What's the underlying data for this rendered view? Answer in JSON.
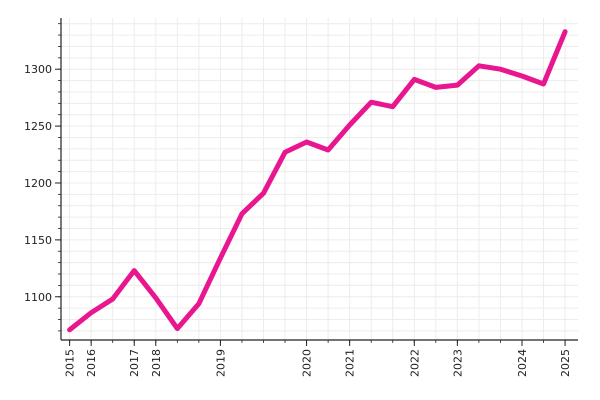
{
  "chart_data": {
    "type": "line",
    "title": "",
    "xlabel": "",
    "ylabel": "",
    "grid": true,
    "color": "#e8168f",
    "x_ticks": [
      {
        "label": "2015",
        "value": 2015.0
      },
      {
        "label": "2016",
        "value": 2015.5
      },
      {
        "label": "2017",
        "value": 2016.5
      },
      {
        "label": "2018",
        "value": 2017.0
      },
      {
        "label": "2019",
        "value": 2018.5
      },
      {
        "label": "2020",
        "value": 2020.5
      },
      {
        "label": "2021",
        "value": 2021.5
      },
      {
        "label": "2022",
        "value": 2023.0
      },
      {
        "label": "2023",
        "value": 2024.0
      },
      {
        "label": "2024",
        "value": 2025.5
      },
      {
        "label": "2025",
        "value": 2026.5
      }
    ],
    "y_ticks": [
      1100,
      1150,
      1200,
      1250,
      1300
    ],
    "xlim": [
      2014.8,
      2026.8
    ],
    "ylim": [
      1062,
      1345
    ],
    "series": [
      {
        "x": [
          2015.0,
          2015.5,
          2016.0,
          2016.5,
          2017.0,
          2017.5,
          2018.0,
          2018.5,
          2019.0,
          2019.5,
          2020.0,
          2020.5,
          2021.0,
          2021.5,
          2022.0,
          2022.5,
          2023.0,
          2023.5,
          2024.0,
          2024.5,
          2025.0,
          2025.5,
          2026.0,
          2026.5
        ],
        "y": [
          1071,
          1086,
          1098,
          1123,
          1099,
          1072,
          1094,
          1134,
          1173,
          1191,
          1227,
          1236,
          1229,
          1251,
          1271,
          1267,
          1291,
          1284,
          1286,
          1303,
          1300,
          1294,
          1287,
          1333
        ]
      }
    ]
  }
}
